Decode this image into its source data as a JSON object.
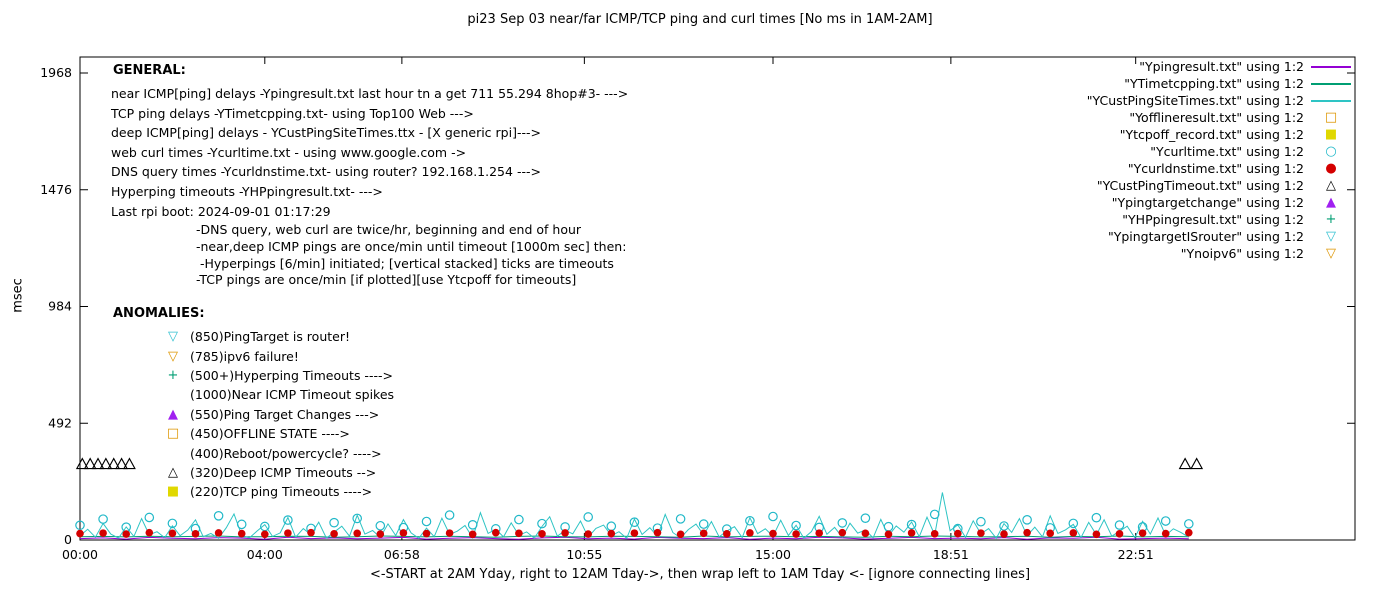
{
  "chart_data": {
    "type": "line",
    "title": "pi23 Sep 03  near/far ICMP/TCP ping and curl times [No ms in 1AM-2AM]",
    "ylabel": "msec",
    "xlabel": "<-START at 2AM Yday, right to 12AM Tday->, then wrap left to 1AM Tday <- [ignore connecting lines]",
    "y_ticks": [
      0,
      492,
      984,
      1476,
      1968
    ],
    "ylim": [
      0,
      2035
    ],
    "x_ticks": [
      {
        "h": 0,
        "label": "00:00"
      },
      {
        "h": 4,
        "label": "04:00"
      },
      {
        "h": 6.967,
        "label": "06:58"
      },
      {
        "h": 10.917,
        "label": "10:55"
      },
      {
        "h": 15,
        "label": "15:00"
      },
      {
        "h": 18.85,
        "label": "18:51"
      },
      {
        "h": 22.85,
        "label": "22:51"
      }
    ],
    "xlim_hours": [
      0,
      27.6
    ],
    "series": [
      {
        "name": "Ypingresult.txt",
        "style": "line",
        "color": "#9400d3",
        "x_start": 0,
        "x_step": 0.5,
        "y": [
          6,
          9,
          4,
          11,
          7,
          5,
          10,
          8,
          3,
          12,
          6,
          9,
          5,
          8,
          11,
          4,
          7,
          10,
          6,
          3,
          9,
          12,
          5,
          8,
          4,
          11,
          7,
          6,
          10,
          3,
          8,
          5,
          12,
          9,
          4,
          7,
          11,
          6,
          8,
          5,
          10,
          3,
          9,
          7,
          12,
          4,
          6,
          8,
          5
        ]
      },
      {
        "name": "YTimetcpping.txt",
        "style": "line",
        "color": "#009e73",
        "x_start": 0,
        "x_step": 0.5,
        "y": [
          14,
          15,
          13,
          16,
          14,
          15,
          17,
          13,
          14,
          16,
          15,
          12,
          14,
          17,
          15,
          13,
          16,
          14,
          12,
          15,
          17,
          14,
          13,
          16,
          15,
          14,
          12,
          17,
          13,
          15,
          16,
          14,
          15,
          13,
          12,
          16,
          14,
          17,
          15,
          13,
          14,
          16,
          12,
          15,
          14,
          17,
          13,
          15,
          14
        ]
      },
      {
        "name": "YCustPingSiteTimes.txt",
        "style": "line",
        "color": "#2ec4c4",
        "x_start": 0,
        "x_step": 0.16667,
        "y": [
          18,
          45,
          12,
          70,
          25,
          8,
          55,
          15,
          90,
          22,
          35,
          10,
          60,
          18,
          42,
          85,
          14,
          28,
          7,
          52,
          110,
          20,
          9,
          38,
          65,
          15,
          30,
          95,
          12,
          48,
          22,
          75,
          8,
          33,
          58,
          16,
          104,
          25,
          40,
          11,
          68,
          19,
          86,
          30,
          7,
          50,
          14,
          92,
          24,
          37,
          61,
          9,
          115,
          28,
          45,
          13,
          72,
          20,
          34,
          8,
          57,
          98,
          16,
          41,
          26,
          80,
          12,
          49,
          63,
          18,
          35,
          7,
          88,
          23,
          52,
          15,
          108,
          31,
          9,
          44,
          67,
          21,
          78,
          13,
          38,
          56,
          10,
          94,
          27,
          47,
          16,
          83,
          19,
          62,
          8,
          36,
          100,
          24,
          53,
          12,
          71,
          29,
          42,
          9,
          87,
          17,
          59,
          33,
          76,
          14,
          96,
          21,
          200,
          39,
          64,
          11,
          81,
          26,
          48,
          7,
          69,
          32,
          90,
          18,
          54,
          13,
          102,
          28,
          43,
          66,
          10,
          74,
          22,
          85,
          16,
          37,
          58,
          9,
          79,
          25,
          93,
          20,
          47,
          31,
          12
        ]
      },
      {
        "name": "Ycurltime.txt",
        "marker": "circle-open",
        "color": "#20b8c8",
        "x_start": 0,
        "x_step": 0.5,
        "y": [
          62,
          88,
          54,
          95,
          70,
          48,
          102,
          66,
          57,
          84,
          49,
          73,
          91,
          60,
          52,
          78,
          105,
          64,
          47,
          86,
          69,
          55,
          97,
          58,
          75,
          50,
          89,
          67,
          46,
          81,
          99,
          61,
          53,
          72,
          92,
          56,
          65,
          108,
          48,
          77,
          59,
          85,
          51,
          70,
          94,
          63,
          55,
          80,
          68
        ]
      },
      {
        "name": "Ycurldnstime.txt",
        "marker": "circle-filled",
        "color": "#d40000",
        "x_start": 0,
        "x_step": 0.5,
        "y": [
          27,
          29,
          25,
          31,
          28,
          26,
          30,
          27,
          24,
          29,
          31,
          26,
          28,
          25,
          30,
          27,
          29,
          24,
          31,
          28,
          26,
          30,
          25,
          27,
          29,
          31,
          24,
          28,
          26,
          30,
          27,
          25,
          29,
          31,
          28,
          24,
          30,
          26,
          27,
          29,
          25,
          31,
          28,
          30,
          24,
          26,
          29,
          27,
          31
        ]
      },
      {
        "name": "YCustPingTimeout.txt",
        "marker": "triangle-up-open",
        "color": "#000000",
        "points": [
          [
            0.05,
            320
          ],
          [
            0.22,
            320
          ],
          [
            0.39,
            320
          ],
          [
            0.56,
            320
          ],
          [
            0.73,
            320
          ],
          [
            0.9,
            320
          ],
          [
            1.07,
            320
          ],
          [
            23.92,
            320
          ],
          [
            24.17,
            320
          ]
        ]
      }
    ]
  },
  "legend": {
    "items": [
      {
        "label": "\"Ypingresult.txt\" using 1:2",
        "symbol": "line",
        "color": "#9400d3"
      },
      {
        "label": "\"YTimetcpping.txt\" using 1:2",
        "symbol": "line",
        "color": "#009e73"
      },
      {
        "label": "\"YCustPingSiteTimes.txt\" using 1:2",
        "symbol": "line",
        "color": "#2ec4c4"
      },
      {
        "label": "\"Yofflineresult.txt\" using 1:2",
        "symbol": "square-open",
        "color": "#dd9500"
      },
      {
        "label": "\"Ytcpoff_record.txt\" using 1:2",
        "symbol": "square-filled",
        "color": "#e0d800"
      },
      {
        "label": "\"Ycurltime.txt\" using 1:2",
        "symbol": "circle-open",
        "color": "#20b8c8"
      },
      {
        "label": "\"Ycurldnstime.txt\" using 1:2",
        "symbol": "circle-filled",
        "color": "#d40000"
      },
      {
        "label": "\"YCustPingTimeout.txt\" using 1:2",
        "symbol": "triangle-up-open",
        "color": "#000000"
      },
      {
        "label": "\"Ypingtargetchange\" using 1:2",
        "symbol": "triangle-up-filled",
        "color": "#a020f0"
      },
      {
        "label": "\"YHPpingresult.txt\" using 1:2",
        "symbol": "plus",
        "color": "#009e73"
      },
      {
        "label": "\"YpingtargetISrouter\" using 1:2",
        "symbol": "triangle-down-open",
        "color": "#30c0d0"
      },
      {
        "label": "\"Ynoipv6\" using 1:2",
        "symbol": "triangle-down-open",
        "color": "#dd9500"
      }
    ]
  },
  "general": {
    "heading": "GENERAL:",
    "lines": [
      "near ICMP[ping] delays -Ypingresult.txt last hour tn a get 711 55.294 8hop#3- --->",
      "TCP ping delays -YTimetcpping.txt- using Top100 Web --->",
      "deep ICMP[ping] delays - YCustPingSiteTimes.ttx - [X generic rpi]--->",
      "web curl times -Ycurltime.txt - using www.google.com ->",
      "DNS query times -Ycurldnstime.txt- using router? 192.168.1.254 --->",
      "Hyperping timeouts -YHPpingresult.txt- --->",
      "Last rpi boot: 2024-09-01 01:17:29"
    ],
    "notes": [
      "-DNS query, web curl are twice/hr, beginning and end of hour",
      "-near,deep ICMP pings are once/min until timeout [1000m sec] then:",
      " -Hyperpings [6/min] initiated; [vertical stacked] ticks are timeouts",
      "-TCP pings are once/min [if plotted][use Ytcpoff for timeouts]"
    ]
  },
  "anomalies": {
    "heading": "ANOMALIES:",
    "items": [
      {
        "symbol": "triangle-down-open",
        "color": "#30c0d0",
        "text": "(850)PingTarget is router!"
      },
      {
        "symbol": "triangle-down-open",
        "color": "#dd9500",
        "text": "(785)ipv6 failure!"
      },
      {
        "symbol": "plus",
        "color": "#009e73",
        "text": "(500+)Hyperping Timeouts ---->"
      },
      {
        "symbol": "none",
        "color": "",
        "text": "(1000)Near ICMP Timeout spikes"
      },
      {
        "symbol": "triangle-up-filled",
        "color": "#a020f0",
        "text": "(550)Ping Target Changes --->"
      },
      {
        "symbol": "square-open",
        "color": "#dd9500",
        "text": "(450)OFFLINE STATE ---->"
      },
      {
        "symbol": "none",
        "color": "",
        "text": "(400)Reboot/powercycle? ---->"
      },
      {
        "symbol": "triangle-up-open",
        "color": "#000000",
        "text": "(320)Deep ICMP Timeouts -->"
      },
      {
        "symbol": "square-filled",
        "color": "#e0d800",
        "text": "(220)TCP ping Timeouts ---->"
      }
    ]
  }
}
